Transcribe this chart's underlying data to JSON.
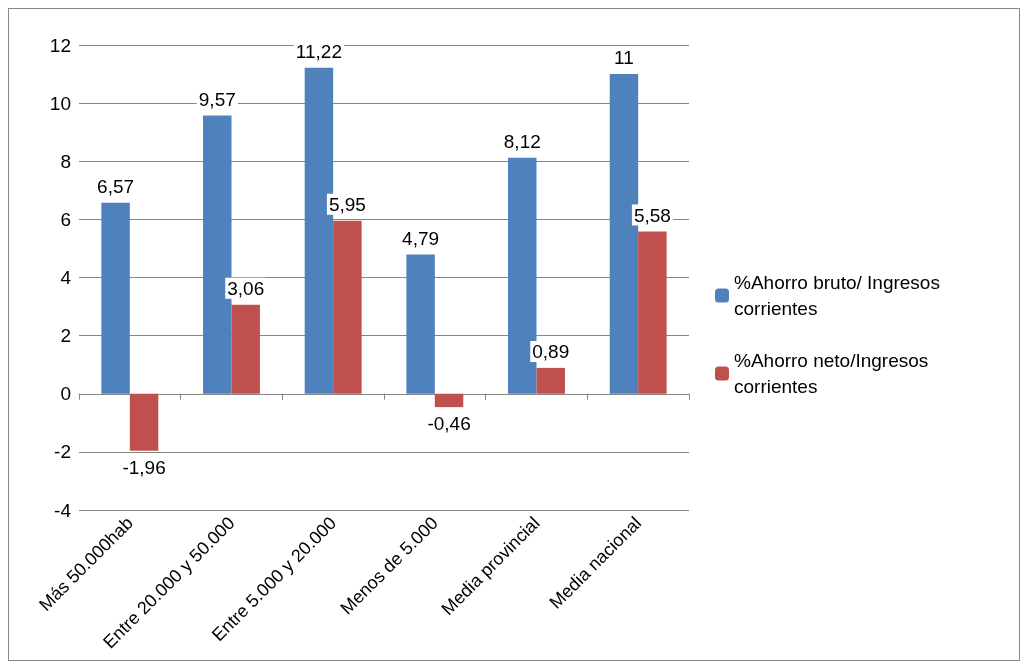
{
  "chart_data": {
    "type": "bar",
    "categories": [
      "Más 50.000hab",
      "Entre 20.000 y 50.000",
      "Entre 5.000 y 20.000",
      "Menos de 5.000",
      "Media provincial",
      "Media nacional"
    ],
    "series": [
      {
        "name": "%Ahorro bruto/ Ingresos corrientes",
        "color": "#4f81bd",
        "values": [
          6.57,
          9.57,
          11.22,
          4.79,
          8.12,
          11
        ],
        "value_labels": [
          "6,57",
          "9,57",
          "11,22",
          "4,79",
          "8,12",
          "11"
        ]
      },
      {
        "name": "%Ahorro neto/Ingresos corrientes",
        "color": "#c0504d",
        "values": [
          -1.96,
          3.06,
          5.95,
          -0.46,
          0.89,
          5.58
        ],
        "value_labels": [
          "-1,96",
          "3,06",
          "5,95",
          "-0,46",
          "0,89",
          "5,58"
        ]
      }
    ],
    "ylim": [
      -4,
      12
    ],
    "yticks": [
      -4,
      -2,
      0,
      2,
      4,
      6,
      8,
      10,
      12
    ],
    "grid": "y",
    "legend": "right"
  }
}
